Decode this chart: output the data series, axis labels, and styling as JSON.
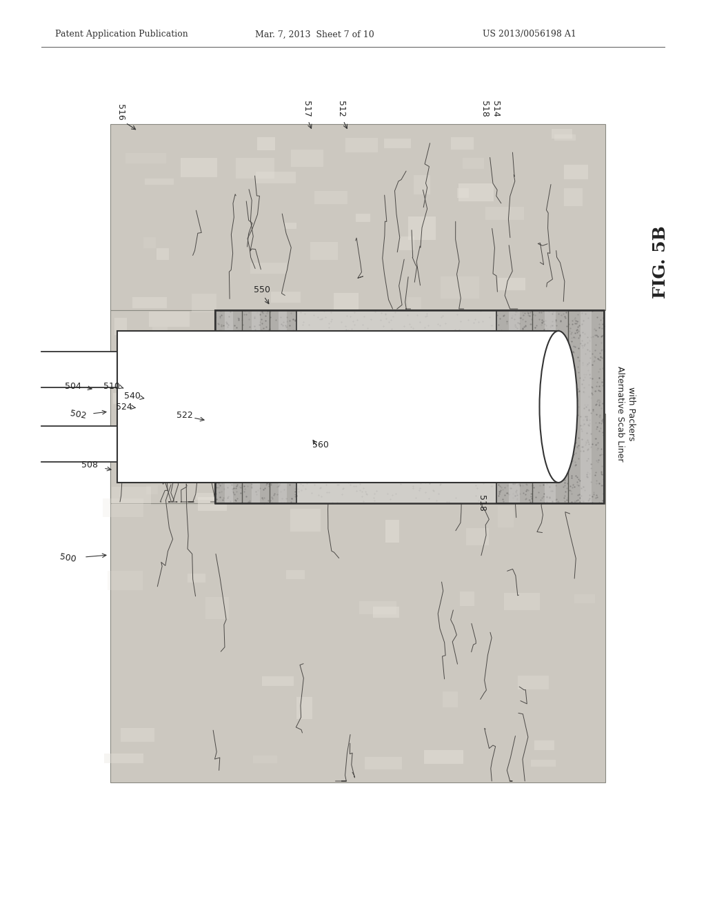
{
  "header_left": "Patent Application Publication",
  "header_mid": "Mar. 7, 2013  Sheet 7 of 10",
  "header_right": "US 2013/0056198 A1",
  "fig_label": "FIG. 5B",
  "bg_color": "#ffffff",
  "rock_color_light": "#d4cfc6",
  "rock_color_mid": "#c4bfb5",
  "packer_fill": "#b0aeaa",
  "packer_dark": "#8a8884",
  "casing_fill": "#c8c5c0",
  "annulus_fill": "#d0cdc8",
  "alt_text1": "Alternative Scab Liner",
  "alt_text2": "with Packers",
  "label_color": "#222222",
  "line_color": "#333333"
}
